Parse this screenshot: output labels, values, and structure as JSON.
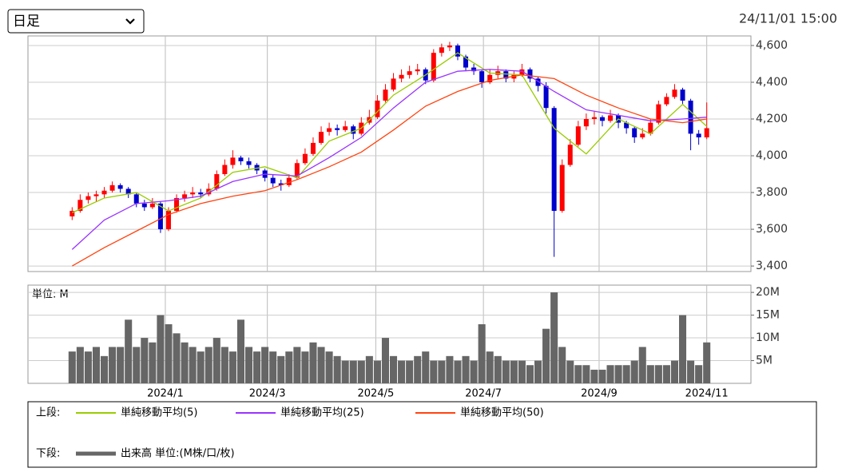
{
  "header": {
    "select": "日足",
    "timestamp": "24/11/01 15:00"
  },
  "chart_data": [
    {
      "type": "candlestick",
      "legend_group": "上段:",
      "up_color": "#ff0000",
      "down_color": "#0000cc",
      "ohlc": [
        [
          3670,
          3720,
          3650,
          3700
        ],
        [
          3700,
          3790,
          3690,
          3760
        ],
        [
          3760,
          3800,
          3740,
          3780
        ],
        [
          3780,
          3810,
          3750,
          3790
        ],
        [
          3790,
          3830,
          3770,
          3810
        ],
        [
          3810,
          3860,
          3800,
          3840
        ],
        [
          3840,
          3850,
          3800,
          3820
        ],
        [
          3820,
          3830,
          3770,
          3790
        ],
        [
          3790,
          3800,
          3720,
          3740
        ],
        [
          3740,
          3760,
          3700,
          3720
        ],
        [
          3720,
          3770,
          3710,
          3740
        ],
        [
          3740,
          3750,
          3580,
          3600
        ],
        [
          3600,
          3720,
          3590,
          3700
        ],
        [
          3700,
          3790,
          3690,
          3770
        ],
        [
          3770,
          3810,
          3750,
          3790
        ],
        [
          3790,
          3830,
          3770,
          3800
        ],
        [
          3800,
          3820,
          3770,
          3790
        ],
        [
          3790,
          3850,
          3780,
          3820
        ],
        [
          3820,
          3920,
          3810,
          3900
        ],
        [
          3900,
          3980,
          3890,
          3950
        ],
        [
          3950,
          4030,
          3930,
          3990
        ],
        [
          3990,
          4000,
          3950,
          3970
        ],
        [
          3970,
          3990,
          3930,
          3950
        ],
        [
          3950,
          3960,
          3900,
          3920
        ],
        [
          3920,
          3930,
          3860,
          3880
        ],
        [
          3880,
          3900,
          3830,
          3850
        ],
        [
          3850,
          3870,
          3810,
          3840
        ],
        [
          3840,
          3900,
          3830,
          3880
        ],
        [
          3880,
          3980,
          3870,
          3960
        ],
        [
          3960,
          4040,
          3950,
          4010
        ],
        [
          4010,
          4100,
          4000,
          4070
        ],
        [
          4070,
          4160,
          4060,
          4130
        ],
        [
          4130,
          4180,
          4110,
          4150
        ],
        [
          4150,
          4170,
          4110,
          4140
        ],
        [
          4140,
          4190,
          4130,
          4160
        ],
        [
          4160,
          4170,
          4090,
          4120
        ],
        [
          4120,
          4210,
          4110,
          4180
        ],
        [
          4180,
          4250,
          4170,
          4210
        ],
        [
          4210,
          4330,
          4200,
          4300
        ],
        [
          4300,
          4390,
          4290,
          4360
        ],
        [
          4360,
          4450,
          4350,
          4420
        ],
        [
          4420,
          4470,
          4400,
          4440
        ],
        [
          4440,
          4490,
          4420,
          4460
        ],
        [
          4460,
          4500,
          4440,
          4470
        ],
        [
          4470,
          4480,
          4390,
          4410
        ],
        [
          4410,
          4580,
          4400,
          4560
        ],
        [
          4560,
          4610,
          4540,
          4590
        ],
        [
          4590,
          4620,
          4570,
          4600
        ],
        [
          4600,
          4610,
          4520,
          4540
        ],
        [
          4540,
          4550,
          4460,
          4480
        ],
        [
          4480,
          4500,
          4440,
          4460
        ],
        [
          4460,
          4470,
          4370,
          4400
        ],
        [
          4400,
          4470,
          4390,
          4440
        ],
        [
          4440,
          4490,
          4420,
          4460
        ],
        [
          4460,
          4470,
          4400,
          4420
        ],
        [
          4420,
          4460,
          4400,
          4440
        ],
        [
          4440,
          4500,
          4430,
          4470
        ],
        [
          4470,
          4480,
          4400,
          4420
        ],
        [
          4420,
          4430,
          4350,
          4380
        ],
        [
          4380,
          4400,
          4230,
          4260
        ],
        [
          4260,
          4270,
          3450,
          3700
        ],
        [
          3700,
          3980,
          3690,
          3950
        ],
        [
          3950,
          4090,
          3940,
          4060
        ],
        [
          4060,
          4190,
          4050,
          4160
        ],
        [
          4160,
          4230,
          4140,
          4200
        ],
        [
          4200,
          4240,
          4170,
          4210
        ],
        [
          4210,
          4220,
          4160,
          4190
        ],
        [
          4190,
          4250,
          4180,
          4220
        ],
        [
          4220,
          4230,
          4150,
          4180
        ],
        [
          4180,
          4190,
          4120,
          4150
        ],
        [
          4150,
          4160,
          4070,
          4100
        ],
        [
          4100,
          4150,
          4090,
          4120
        ],
        [
          4120,
          4200,
          4110,
          4180
        ],
        [
          4180,
          4300,
          4170,
          4280
        ],
        [
          4280,
          4340,
          4270,
          4320
        ],
        [
          4320,
          4390,
          4310,
          4360
        ],
        [
          4360,
          4370,
          4280,
          4300
        ],
        [
          4300,
          4310,
          4030,
          4120
        ],
        [
          4120,
          4140,
          4060,
          4100
        ],
        [
          4100,
          4290,
          4090,
          4150
        ]
      ],
      "xlim": [
        -5.5,
        84.5
      ],
      "xticks": [
        {
          "value": 11.6,
          "label": "2024/1"
        },
        {
          "value": 24.3,
          "label": "2024/3"
        },
        {
          "value": 37.8,
          "label": "2024/5"
        },
        {
          "value": 51.2,
          "label": "2024/7"
        },
        {
          "value": 65.6,
          "label": "2024/9"
        },
        {
          "value": 79,
          "label": "2024/11"
        }
      ],
      "ylim": [
        3370,
        4652
      ],
      "yticks": [
        {
          "value": 3400,
          "label": "3,400"
        },
        {
          "value": 3600,
          "label": "3,600"
        },
        {
          "value": 3800,
          "label": "3,800"
        },
        {
          "value": 4000,
          "label": "4,000"
        },
        {
          "value": 4200,
          "label": "4,200"
        },
        {
          "value": 4400,
          "label": "4,400"
        },
        {
          "value": 4600,
          "label": "4,600"
        }
      ],
      "grid": true,
      "series": [
        {
          "name": "単純移動平均(5)",
          "color": "#99cc00",
          "x": [
            0,
            4,
            8,
            12,
            16,
            20,
            24,
            28,
            32,
            36,
            40,
            44,
            48,
            52,
            56,
            60,
            64,
            68,
            72,
            76,
            79
          ],
          "values": [
            3690,
            3770,
            3800,
            3700,
            3770,
            3910,
            3940,
            3880,
            4080,
            4150,
            4330,
            4440,
            4560,
            4450,
            4440,
            4150,
            4010,
            4200,
            4120,
            4280,
            4160
          ]
        },
        {
          "name": "単純移動平均(25)",
          "color": "#9933ff",
          "x": [
            0,
            4,
            8,
            12,
            16,
            20,
            24,
            28,
            32,
            36,
            40,
            44,
            48,
            52,
            56,
            60,
            64,
            68,
            72,
            76,
            79
          ],
          "values": [
            3490,
            3650,
            3740,
            3755,
            3780,
            3860,
            3900,
            3890,
            3990,
            4100,
            4260,
            4400,
            4460,
            4470,
            4460,
            4350,
            4250,
            4220,
            4190,
            4200,
            4210
          ]
        },
        {
          "name": "単純移動平均(50)",
          "color": "#ff4411",
          "x": [
            0,
            4,
            8,
            12,
            16,
            20,
            24,
            28,
            32,
            36,
            40,
            44,
            48,
            52,
            56,
            60,
            64,
            68,
            72,
            76,
            79
          ],
          "values": [
            3400,
            3500,
            3590,
            3680,
            3740,
            3780,
            3810,
            3870,
            3940,
            4020,
            4140,
            4270,
            4350,
            4410,
            4440,
            4420,
            4330,
            4260,
            4200,
            4180,
            4200
          ]
        }
      ]
    },
    {
      "type": "bar",
      "legend_group": "下段:",
      "name": "出来高 単位:(M株/口/枚)",
      "unit_label": "単位: M",
      "color": "#666666",
      "values": [
        7,
        8,
        7,
        8,
        6,
        8,
        8,
        14,
        8,
        10,
        9,
        15,
        13,
        11,
        9,
        8,
        7,
        8,
        10,
        8,
        7,
        14,
        8,
        7,
        8,
        7,
        6,
        7,
        8,
        7,
        9,
        8,
        7,
        6,
        5,
        5,
        5,
        6,
        5,
        10,
        6,
        5,
        5,
        6,
        7,
        5,
        5,
        6,
        5,
        6,
        5,
        13,
        7,
        6,
        5,
        5,
        5,
        4,
        5,
        12,
        20,
        8,
        5,
        4,
        4,
        3,
        3,
        4,
        4,
        4,
        5,
        8,
        4,
        4,
        4,
        5,
        15,
        5,
        4,
        9
      ],
      "ylim": [
        0,
        21.6
      ],
      "yticks": [
        {
          "value": 5,
          "label": "5M"
        },
        {
          "value": 10,
          "label": "10M"
        },
        {
          "value": 15,
          "label": "15M"
        },
        {
          "value": 20,
          "label": "20M"
        }
      ],
      "grid": true
    }
  ]
}
